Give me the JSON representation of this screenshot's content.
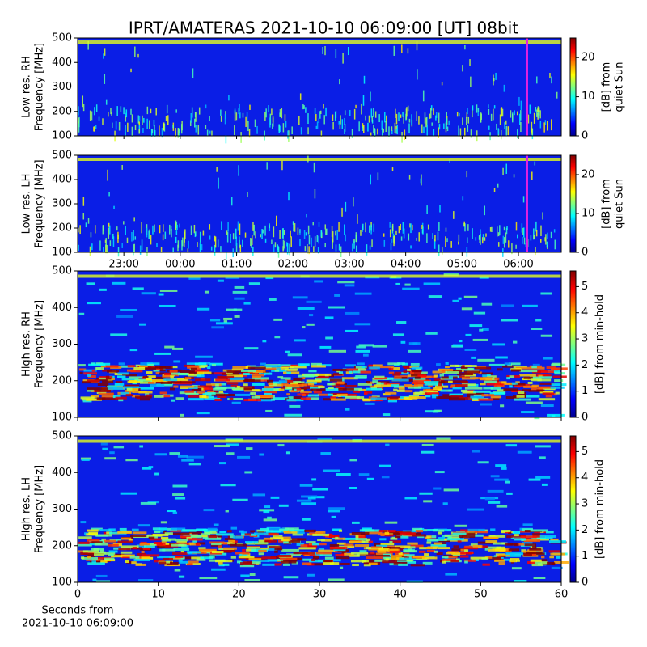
{
  "title": "IPRT/AMATERAS 2021-10-10 06:09:00 [UT]   08bit",
  "chart_data": [
    {
      "type": "heatmap",
      "ylabel": [
        "Low res. RH",
        "Frequency [MHz]"
      ],
      "ylim": [
        100,
        500
      ],
      "yticks": [
        100,
        200,
        300,
        400,
        500
      ],
      "xlim": [
        22.18,
        30.76
      ],
      "marker_time": 30.15,
      "marker_color": "#e020e0",
      "clim": [
        0,
        25
      ],
      "cticks": [
        0,
        10,
        20
      ],
      "clabel": [
        "[dB] from",
        "quiet Sun"
      ]
    },
    {
      "type": "heatmap",
      "ylabel": [
        "Low res. LH",
        "Frequency [MHz]"
      ],
      "ylim": [
        100,
        500
      ],
      "yticks": [
        100,
        200,
        300,
        400,
        500
      ],
      "xlim": [
        22.18,
        30.76
      ],
      "xticks": [
        {
          "value": 23,
          "label": "23:00"
        },
        {
          "value": 24,
          "label": "00:00"
        },
        {
          "value": 25,
          "label": "01:00"
        },
        {
          "value": 26,
          "label": "02:00"
        },
        {
          "value": 27,
          "label": "03:00"
        },
        {
          "value": 28,
          "label": "04:00"
        },
        {
          "value": 29,
          "label": "05:00"
        },
        {
          "value": 30,
          "label": "06:00"
        }
      ],
      "marker_time": 30.15,
      "marker_color": "#e020e0",
      "clim": [
        0,
        25
      ],
      "cticks": [
        0,
        10,
        20
      ],
      "clabel": [
        "[dB] from",
        "quiet Sun"
      ]
    },
    {
      "type": "heatmap",
      "ylabel": [
        "High res. RH",
        "Frequency [MHz]"
      ],
      "ylim": [
        100,
        500
      ],
      "yticks": [
        100,
        200,
        300,
        400,
        500
      ],
      "xlim": [
        0,
        60
      ],
      "clim": [
        0,
        5.6
      ],
      "cticks": [
        0,
        1,
        2,
        3,
        4,
        5
      ],
      "clabel": [
        "[dB] from min-hold"
      ]
    },
    {
      "type": "heatmap",
      "ylabel": [
        "High res. LH",
        "Frequency [MHz]"
      ],
      "ylim": [
        100,
        500
      ],
      "yticks": [
        100,
        200,
        300,
        400,
        500
      ],
      "xlim": [
        0,
        60
      ],
      "xticks": [
        0,
        10,
        20,
        30,
        40,
        50,
        60
      ],
      "xlabel": [
        "Seconds from",
        "2021-10-10 06:09:00"
      ],
      "clim": [
        0,
        5.6
      ],
      "cticks": [
        0,
        1,
        2,
        3,
        4,
        5
      ],
      "clabel": [
        "[dB] from min-hold"
      ]
    }
  ]
}
